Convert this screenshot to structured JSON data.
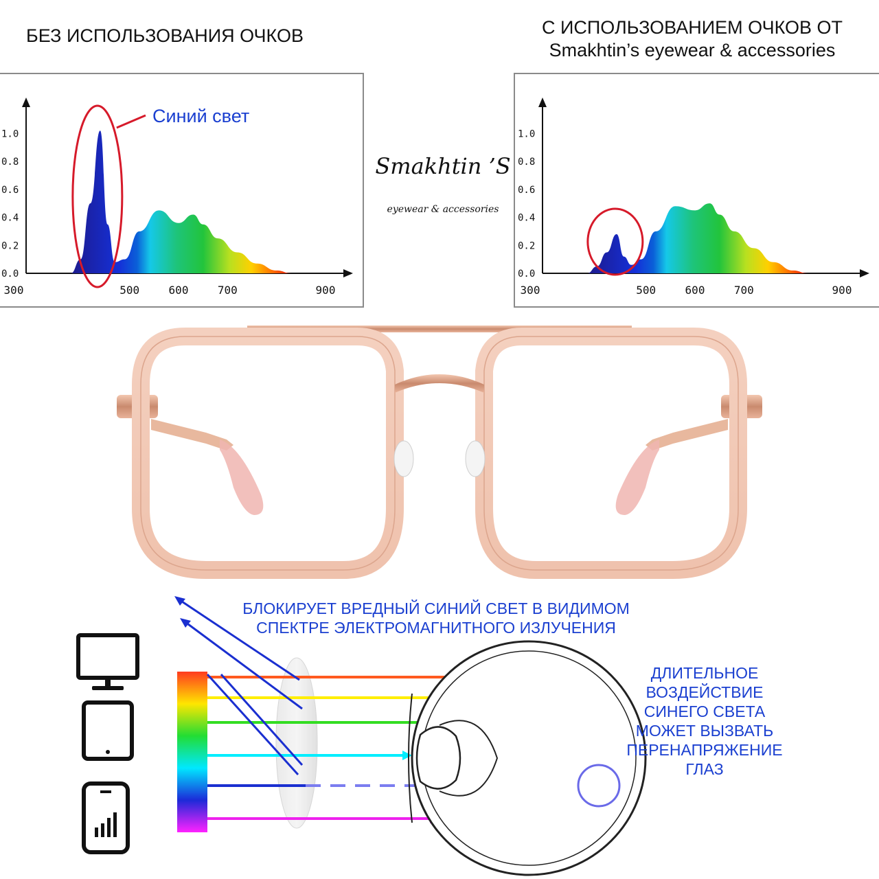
{
  "headers": {
    "left": "БЕЗ ИСПОЛЬЗОВАНИЯ ОЧКОВ",
    "right_line1": "С ИСПОЛЬЗОВАНИЕМ ОЧКОВ ОТ",
    "right_line2": "Smakhtin’s eyewear & accessories"
  },
  "brand": {
    "name": "Smakhtin ’S",
    "subtitle": "eyewear & accessories"
  },
  "chart_data": [
    {
      "type": "area",
      "annotation": "Синий свет",
      "y_ticks": [
        "1.0",
        "0.8",
        "0.6",
        "0.4",
        "0.2",
        "0.0"
      ],
      "x_ticks": [
        "300",
        "500",
        "600",
        "700",
        "900"
      ],
      "ylim": [
        0,
        1.1
      ],
      "xlim": [
        300,
        900
      ],
      "x": [
        380,
        400,
        420,
        440,
        455,
        470,
        490,
        520,
        560,
        600,
        630,
        650,
        680,
        720,
        760,
        800,
        830
      ],
      "values": [
        0.0,
        0.1,
        0.5,
        1.02,
        0.35,
        0.08,
        0.1,
        0.3,
        0.45,
        0.36,
        0.42,
        0.35,
        0.25,
        0.15,
        0.07,
        0.02,
        0.0
      ]
    },
    {
      "type": "area",
      "y_ticks": [
        "1.0",
        "0.8",
        "0.6",
        "0.4",
        "0.2",
        "0.0"
      ],
      "x_ticks": [
        "300",
        "500",
        "600",
        "700",
        "900"
      ],
      "ylim": [
        0,
        1.1
      ],
      "xlim": [
        300,
        900
      ],
      "x": [
        380,
        400,
        420,
        440,
        455,
        470,
        490,
        520,
        560,
        600,
        630,
        650,
        680,
        720,
        760,
        800,
        830
      ],
      "values": [
        0.0,
        0.05,
        0.15,
        0.28,
        0.12,
        0.06,
        0.1,
        0.3,
        0.48,
        0.45,
        0.5,
        0.42,
        0.3,
        0.18,
        0.08,
        0.02,
        0.0
      ]
    }
  ],
  "diagram": {
    "blocks_text_line1": "БЛОКИРУЕТ ВРЕДНЫЙ СИНИЙ СВЕТ В ВИДИМОМ",
    "blocks_text_line2": "СПЕКТРЕ ЭЛЕКТРОМАГНИТНОГО ИЗЛУЧЕНИЯ",
    "exposure_lines": [
      "ДЛИТЕЛЬНОЕ",
      "ВОЗДЕЙСТВИЕ",
      "СИНЕГО СВЕТА",
      "МОЖЕТ ВЫЗВАТЬ",
      "ПЕРЕНАПРЯЖЕНИЕ",
      "ГЛАЗ"
    ],
    "device_icons": [
      "monitor-icon",
      "tablet-icon",
      "smartphone-icon"
    ],
    "ray_colors": [
      "#ff5a1f",
      "#ffee00",
      "#33dd22",
      "#00eeff",
      "#1a2fd0",
      "#ee22ee"
    ]
  }
}
